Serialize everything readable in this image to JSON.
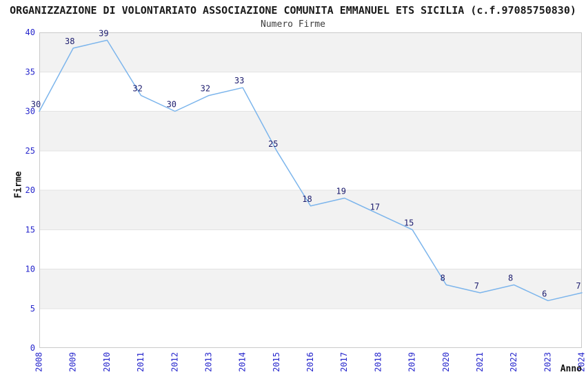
{
  "chart_data": {
    "type": "line",
    "title": "ORGANIZZAZIONE DI VOLONTARIATO ASSOCIAZIONE COMUNITA EMMANUEL ETS SICILIA (c.f.97085750830)",
    "subtitle": "Numero Firme",
    "xlabel": "Anno",
    "ylabel": "Firme",
    "categories": [
      "2008",
      "2009",
      "2010",
      "2011",
      "2012",
      "2013",
      "2014",
      "2015",
      "2016",
      "2017",
      "2018",
      "2019",
      "2020",
      "2021",
      "2022",
      "2023",
      "2024"
    ],
    "values": [
      30,
      38,
      39,
      32,
      30,
      32,
      33,
      25,
      18,
      19,
      17,
      15,
      8,
      7,
      8,
      6,
      7
    ],
    "ylim": [
      0,
      40
    ],
    "yticks": [
      0,
      5,
      10,
      15,
      20,
      25,
      30,
      35,
      40
    ],
    "legend": "none",
    "grid": "alternating-horizontal-bands",
    "data_labels_visible": true,
    "colors": {
      "line": "#7cb5ec",
      "tick_labels": "#2525cc",
      "data_labels": "#1c1c6e",
      "band": "#f2f2f2",
      "grid_line": "#e3e3e3",
      "plot_border": "#c9c9c9",
      "title": "#1a1a1a",
      "subtitle": "#3c3c3c",
      "axis_titles": "#111111",
      "background": "#ffffff"
    }
  }
}
